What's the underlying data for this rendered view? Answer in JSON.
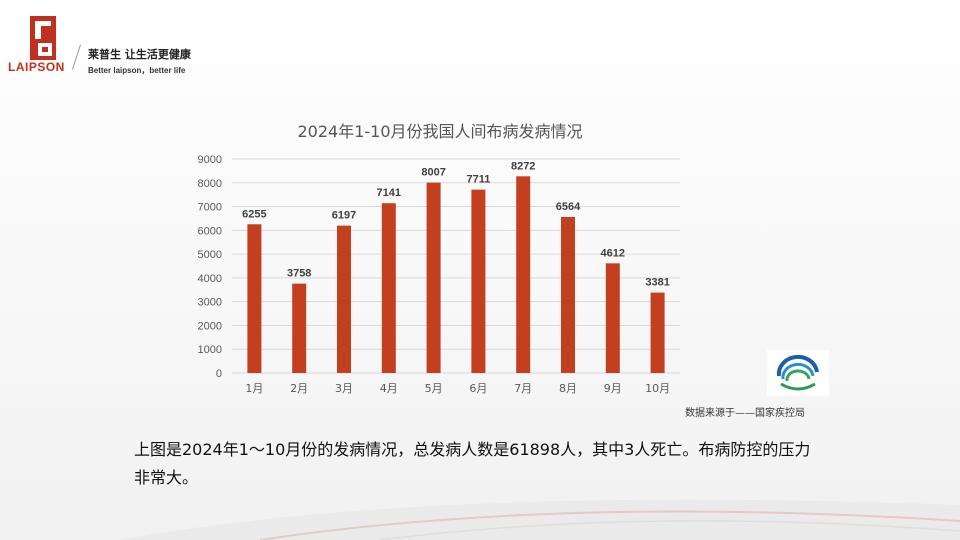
{
  "brand": {
    "logo_word": "LAIPSON",
    "slogan_cn": "莱普生 让生活更健康",
    "slogan_en": "Better laipson，better life",
    "color": "#c0301f"
  },
  "chart_data": {
    "type": "bar",
    "title": "2024年1-10月份我国人间布病发病情况",
    "categories": [
      "1月",
      "2月",
      "3月",
      "4月",
      "5月",
      "6月",
      "7月",
      "8月",
      "9月",
      "10月"
    ],
    "values": [
      6255,
      3758,
      6197,
      7141,
      8007,
      7711,
      8272,
      6564,
      4612,
      3381
    ],
    "ylim": [
      0,
      9000
    ],
    "yticks": [
      0,
      1000,
      2000,
      3000,
      4000,
      5000,
      6000,
      7000,
      8000,
      9000
    ],
    "grid": true,
    "bar_color": "#c2401f"
  },
  "source": "数据来源于——国家疾控局",
  "caption": "上图是2024年1～10月份的发病情况，总发病人数是61898人，其中3人死亡。布病防控的压力非常大。"
}
